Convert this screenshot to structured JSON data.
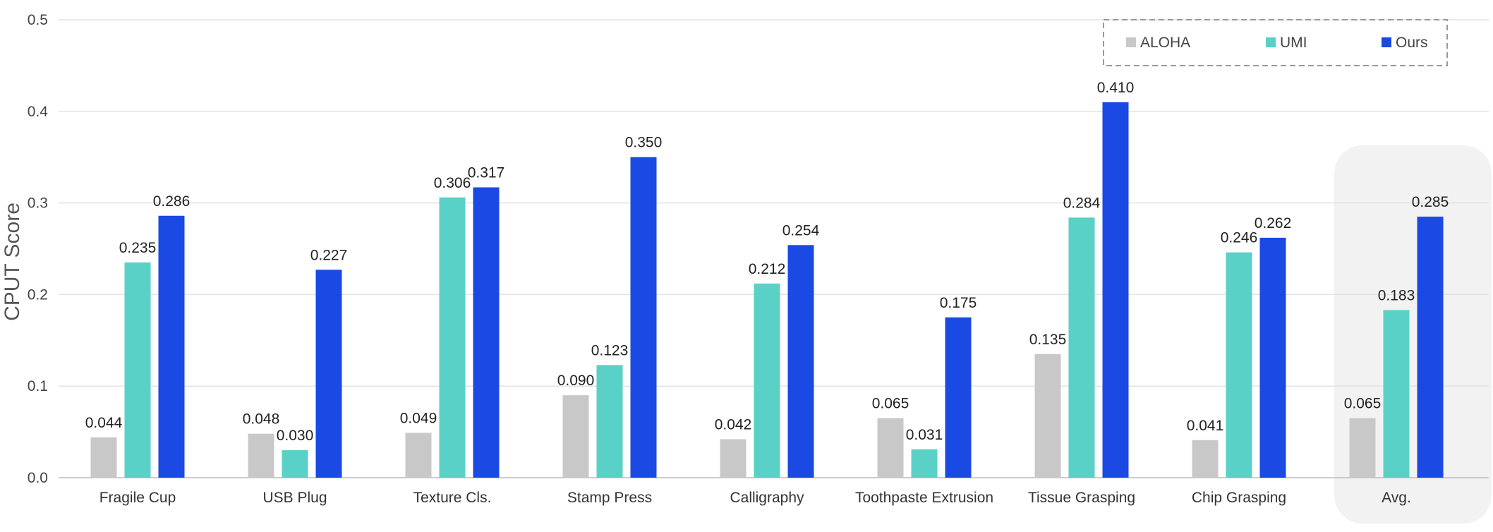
{
  "chart_data": {
    "type": "bar",
    "ylabel": "CPUT Score",
    "ylim": [
      0,
      0.5
    ],
    "yticks": [
      "0.0",
      "0.1",
      "0.2",
      "0.3",
      "0.4",
      "0.5"
    ],
    "grid": true,
    "legend_position": "top-right",
    "highlight_category": "Avg.",
    "categories": [
      "Fragile Cup",
      "USB Plug",
      "Texture Cls.",
      "Stamp Press",
      "Calligraphy",
      "Toothpaste Extrusion",
      "Tissue Grasping",
      "Chip Grasping",
      "Avg."
    ],
    "series": [
      {
        "name": "ALOHA",
        "color": "#c8c8c8",
        "values": [
          0.044,
          0.048,
          0.049,
          0.09,
          0.042,
          0.065,
          0.135,
          0.041,
          0.065
        ],
        "labels": [
          "0.044",
          "0.048",
          "0.049",
          "0.090",
          "0.042",
          "0.065",
          "0.135",
          "0.041",
          "0.065"
        ]
      },
      {
        "name": "UMI",
        "color": "#5ad1c6",
        "values": [
          0.235,
          0.03,
          0.306,
          0.123,
          0.212,
          0.031,
          0.284,
          0.246,
          0.183
        ],
        "labels": [
          "0.235",
          "0.030",
          "0.306",
          "0.123",
          "0.212",
          "0.031",
          "0.284",
          "0.246",
          "0.183"
        ]
      },
      {
        "name": "Ours",
        "color": "#1a4ae3",
        "values": [
          0.286,
          0.227,
          0.317,
          0.35,
          0.254,
          0.175,
          0.41,
          0.262,
          0.285
        ],
        "labels": [
          "0.286",
          "0.227",
          "0.317",
          "0.350",
          "0.254",
          "0.175",
          "0.410",
          "0.262",
          "0.285"
        ]
      }
    ]
  }
}
